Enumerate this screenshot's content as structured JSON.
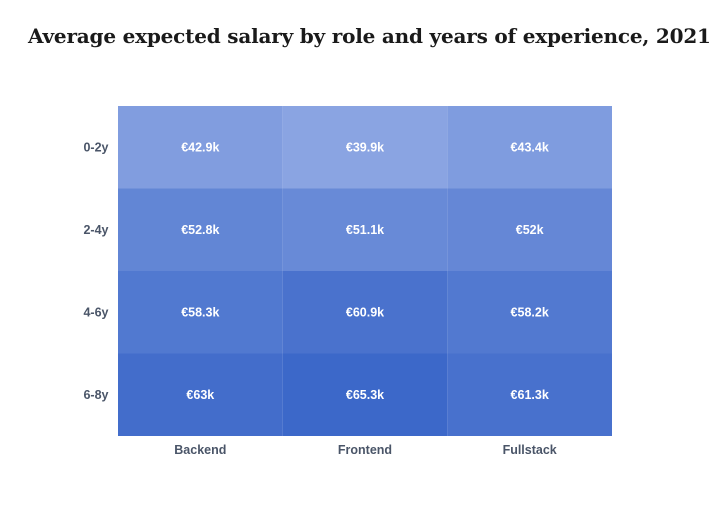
{
  "title": "Average expected salary by role and years of experience, 2021",
  "chart_data": {
    "type": "heatmap",
    "title": "Average expected salary by role and years of experience, 2021",
    "columns": [
      "Backend",
      "Frontend",
      "Fullstack"
    ],
    "rows": [
      "0-2y",
      "2-4y",
      "4-6y",
      "6-8y"
    ],
    "values": [
      [
        42.9,
        39.9,
        43.4
      ],
      [
        52.8,
        51.1,
        52
      ],
      [
        58.3,
        60.9,
        58.2
      ],
      [
        63,
        65.3,
        61.3
      ]
    ],
    "labels": [
      [
        "€42.9k",
        "€39.9k",
        "€43.4k"
      ],
      [
        "€52.8k",
        "€51.1k",
        "€52k"
      ],
      [
        "€58.3k",
        "€60.9k",
        "€58.2k"
      ],
      [
        "€63k",
        "€65.3k",
        "€61.3k"
      ]
    ],
    "unit": "€ thousands",
    "color_low": "#8aa4e2",
    "color_high": "#3c68c9",
    "grid": false,
    "legend": "none"
  }
}
